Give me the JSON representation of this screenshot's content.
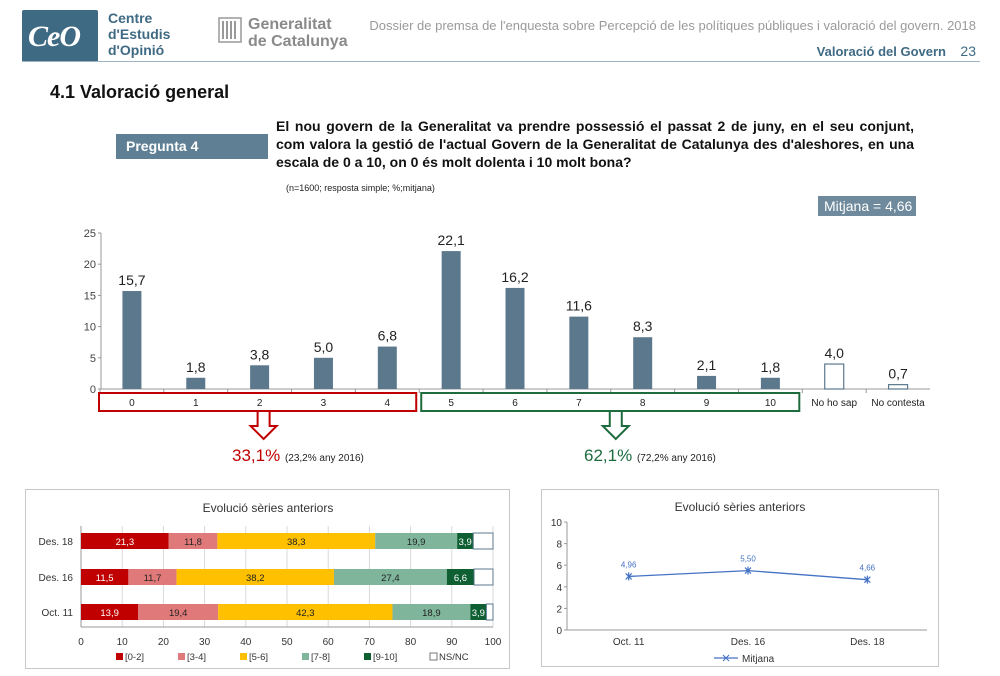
{
  "header": {
    "logo_text": "CeO",
    "org_name": [
      "Centre",
      "d'Estudis",
      "d'Opinió"
    ],
    "gov_name": [
      "Generalitat",
      "de Catalunya"
    ],
    "document_title": "Dossier de premsa de l'enquesta sobre Percepció de les polítiques públiques i valoració del govern. 2018",
    "section": "Valoració del Govern",
    "page": "23"
  },
  "section_title": "4.1  Valoració general",
  "question": {
    "label": "Pregunta 4",
    "text": "El nou govern de la Generalitat va prendre possessió el passat 2 de juny, en el seu conjunt, com valora la gestió de l'actual Govern de la Generalitat de Catalunya des d'aleshores, en una escala de 0 a 10, on 0 és molt dolenta i 10 molt bona?",
    "note": "(n=1600; resposta simple; %;mitjana)",
    "mean_label": "Mitjana = 4,66"
  },
  "groups": {
    "negative": {
      "pct": "33,1%",
      "prev": "(23,2% any 2016)",
      "color": "#c00000"
    },
    "positive": {
      "pct": "62,1%",
      "prev": "(72,2% any 2016)",
      "color": "#1e6b3e"
    }
  },
  "colors": {
    "bar": "#5b788d",
    "axis": "#999999"
  },
  "chart_data": [
    {
      "type": "bar",
      "categories": [
        "0",
        "1",
        "2",
        "3",
        "4",
        "5",
        "6",
        "7",
        "8",
        "9",
        "10",
        "No ho sap",
        "No contesta"
      ],
      "values": [
        15.7,
        1.8,
        3.8,
        5.0,
        6.8,
        22.1,
        16.2,
        11.6,
        8.3,
        2.1,
        1.8,
        4.0,
        0.7
      ],
      "labels": [
        "15,7",
        "1,8",
        "3,8",
        "5,0",
        "6,8",
        "22,1",
        "16,2",
        "11,6",
        "8,3",
        "2,1",
        "1,8",
        "4,0",
        "0,7"
      ],
      "hollow": [
        false,
        false,
        false,
        false,
        false,
        false,
        false,
        false,
        false,
        false,
        false,
        true,
        true
      ],
      "yticks": [
        "0",
        "5",
        "10",
        "15",
        "20",
        "25"
      ],
      "ylim": [
        0,
        25
      ]
    },
    {
      "type": "bar",
      "orientation": "horizontal-stacked",
      "title": "Evolució sèries anteriors",
      "categories": [
        "Des. 18",
        "Des. 16",
        "Oct. 11"
      ],
      "series": [
        {
          "name": "[0-2]",
          "color": "#c00000",
          "values": [
            21.3,
            11.5,
            13.9
          ],
          "labels": [
            "21,3",
            "11,5",
            "13,9"
          ]
        },
        {
          "name": "[3-4]",
          "color": "#e07a7a",
          "values": [
            11.8,
            11.7,
            19.4
          ],
          "labels": [
            "11,8",
            "11,7",
            "19,4"
          ]
        },
        {
          "name": "[5-6]",
          "color": "#ffc000",
          "values": [
            38.3,
            38.2,
            42.3
          ],
          "labels": [
            "38,3",
            "38,2",
            "42,3"
          ]
        },
        {
          "name": "[7-8]",
          "color": "#7fb59b",
          "values": [
            19.9,
            27.4,
            18.9
          ],
          "labels": [
            "19,9",
            "27,4",
            "18,9"
          ]
        },
        {
          "name": "[9-10]",
          "color": "#0e5f32",
          "values": [
            3.9,
            6.6,
            3.9
          ],
          "labels": [
            "3,9",
            "6,6",
            "3,9"
          ]
        },
        {
          "name": "NS/NC",
          "color": "#ffffff",
          "values": [
            4.8,
            4.6,
            1.6
          ],
          "labels": [
            "",
            "",
            ""
          ]
        }
      ],
      "xticks": [
        "0",
        "10",
        "20",
        "30",
        "40",
        "50",
        "60",
        "70",
        "80",
        "90",
        "100"
      ],
      "xlim": [
        0,
        100
      ]
    },
    {
      "type": "line",
      "title": "Evolució sèries anteriors",
      "categories": [
        "Oct. 11",
        "Des. 16",
        "Des. 18"
      ],
      "series": [
        {
          "name": "Mitjana",
          "color": "#4472c4",
          "values": [
            4.96,
            5.5,
            4.66
          ],
          "labels": [
            "4,96",
            "5,50",
            "4,66"
          ]
        }
      ],
      "yticks": [
        "0",
        "2",
        "4",
        "6",
        "8",
        "10"
      ],
      "ylim": [
        0,
        10
      ]
    }
  ]
}
